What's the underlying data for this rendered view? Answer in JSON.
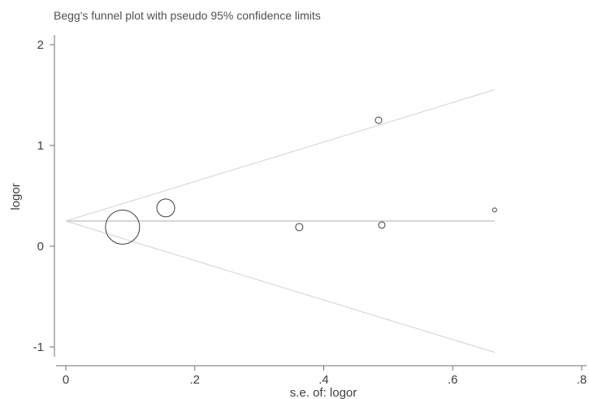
{
  "chart_data": {
    "type": "scatter",
    "title": "Begg's funnel plot with pseudo 95% confidence limits",
    "xlabel": "s.e. of: logor",
    "ylabel": "logor",
    "xlim": [
      0,
      0.8
    ],
    "ylim": [
      -1,
      2
    ],
    "x_ticks": [
      0,
      0.2,
      0.4,
      0.6,
      0.8
    ],
    "x_tick_labels": [
      "0",
      ".2",
      ".4",
      ".6",
      ".8"
    ],
    "y_ticks": [
      -1,
      0,
      1,
      2
    ],
    "y_tick_labels": [
      "-1",
      "0",
      "1",
      "2"
    ],
    "grid": false,
    "pooled_estimate": 0.25,
    "line_x_range": [
      0,
      0.665
    ],
    "studies": [
      {
        "x": 0.088,
        "y": 0.19,
        "marker_size": 21
      },
      {
        "x": 0.155,
        "y": 0.38,
        "marker_size": 11
      },
      {
        "x": 0.362,
        "y": 0.19,
        "marker_size": 4.5
      },
      {
        "x": 0.485,
        "y": 1.25,
        "marker_size": 4
      },
      {
        "x": 0.49,
        "y": 0.21,
        "marker_size": 4
      },
      {
        "x": 0.665,
        "y": 0.36,
        "marker_size": 2.5
      }
    ],
    "colors": {
      "axis": "#707070",
      "pooled_line": "#bdbdbd",
      "limit_lines": "#d9d9d9",
      "marker": "#404040",
      "text": "#404040"
    }
  }
}
